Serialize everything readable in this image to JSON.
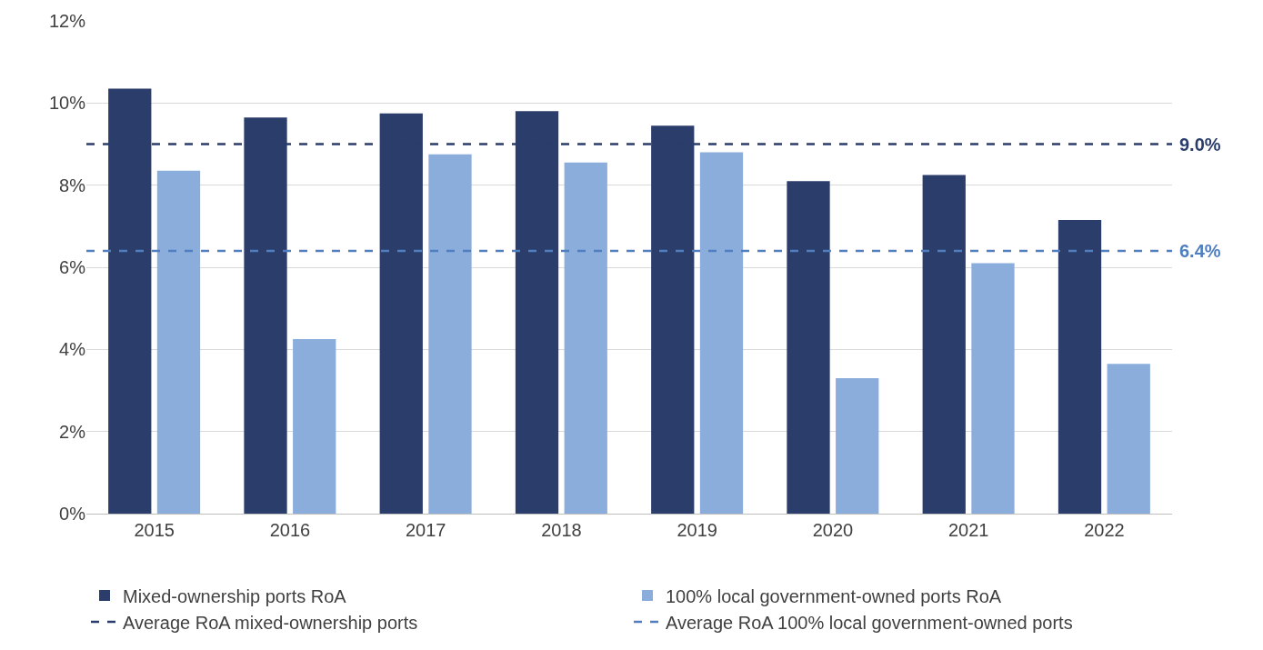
{
  "chart_data": {
    "type": "bar",
    "categories": [
      "2015",
      "2016",
      "2017",
      "2018",
      "2019",
      "2020",
      "2021",
      "2022"
    ],
    "series": [
      {
        "name": "Mixed-ownership ports RoA",
        "color": "#2b3d6b",
        "values": [
          10.35,
          9.65,
          9.75,
          9.8,
          9.45,
          8.1,
          8.25,
          7.15
        ]
      },
      {
        "name": "100% local government-owned ports RoA",
        "color": "#8aaddc",
        "values": [
          8.35,
          4.25,
          8.75,
          8.55,
          8.8,
          3.3,
          6.1,
          3.65
        ]
      }
    ],
    "ylim": [
      0,
      12
    ],
    "yticks": [
      {
        "value": 0,
        "label": "0%"
      },
      {
        "value": 2,
        "label": "2%"
      },
      {
        "value": 4,
        "label": "4%"
      },
      {
        "value": 6,
        "label": "6%"
      },
      {
        "value": 8,
        "label": "8%"
      },
      {
        "value": 10,
        "label": "10%"
      },
      {
        "value": 12,
        "label": "12%"
      }
    ],
    "ref_lines": [
      {
        "axis": "y",
        "value": 9.0,
        "label": "Average RoA mixed-ownership ports",
        "color": "#2b3d6b",
        "line_style": "dashed"
      },
      {
        "axis": "y",
        "value": 6.4,
        "label": "Average RoA 100% local government-owned ports",
        "color": "#4f7fc0",
        "line_style": "dashed"
      }
    ],
    "annotations": [
      "9.0%",
      "6.4%"
    ],
    "grid": "y",
    "legend": "bottom"
  }
}
